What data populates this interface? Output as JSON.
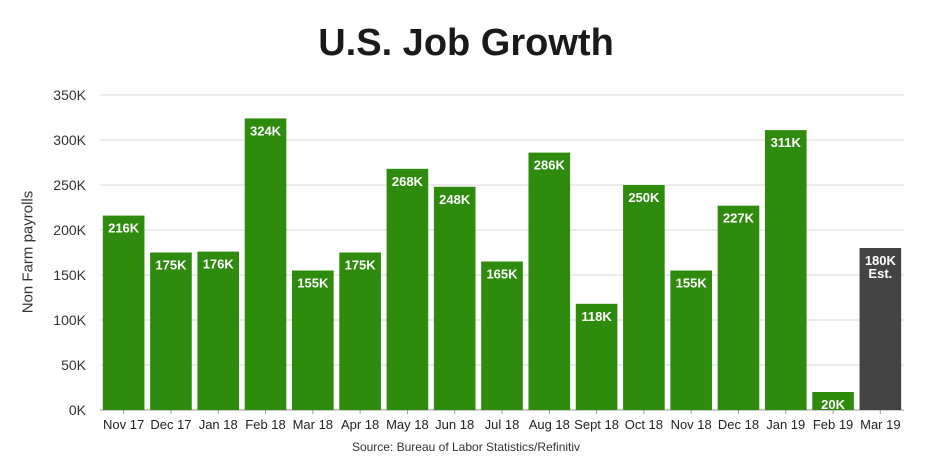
{
  "chart_data": {
    "type": "bar",
    "title": "U.S. Job Growth",
    "ylabel": "Non Farm payrolls",
    "xlabel": "",
    "source": "Source: Bureau of Labor Statistics/Refinitiv",
    "ylim": [
      0,
      350000
    ],
    "yticks": [
      0,
      50000,
      100000,
      150000,
      200000,
      250000,
      300000,
      350000
    ],
    "ytick_labels": [
      "0K",
      "50K",
      "100K",
      "150K",
      "200K",
      "250K",
      "300K",
      "350K"
    ],
    "grid": true,
    "categories": [
      "Nov 17",
      "Dec 17",
      "Jan 18",
      "Feb 18",
      "Mar 18",
      "Apr 18",
      "May 18",
      "Jun 18",
      "Jul 18",
      "Aug 18",
      "Sept 18",
      "Oct 18",
      "Nov 18",
      "Dec 18",
      "Jan 19",
      "Feb 19",
      "Mar 19"
    ],
    "values": [
      216000,
      175000,
      176000,
      324000,
      155000,
      175000,
      268000,
      248000,
      165000,
      286000,
      118000,
      250000,
      155000,
      227000,
      311000,
      20000,
      180000
    ],
    "data_labels": [
      "216K",
      "175K",
      "176K",
      "324K",
      "155K",
      "175K",
      "268K",
      "248K",
      "165K",
      "286K",
      "118K",
      "250K",
      "155K",
      "227K",
      "311K",
      "20K",
      "180K"
    ],
    "estimate_labels": [
      "",
      "",
      "",
      "",
      "",
      "",
      "",
      "",
      "",
      "",
      "",
      "",
      "",
      "",
      "",
      "",
      "Est."
    ],
    "colors": {
      "actual": "#2e8b0e",
      "estimate": "#444444"
    },
    "bar_kind": [
      "actual",
      "actual",
      "actual",
      "actual",
      "actual",
      "actual",
      "actual",
      "actual",
      "actual",
      "actual",
      "actual",
      "actual",
      "actual",
      "actual",
      "actual",
      "actual",
      "estimate"
    ]
  }
}
